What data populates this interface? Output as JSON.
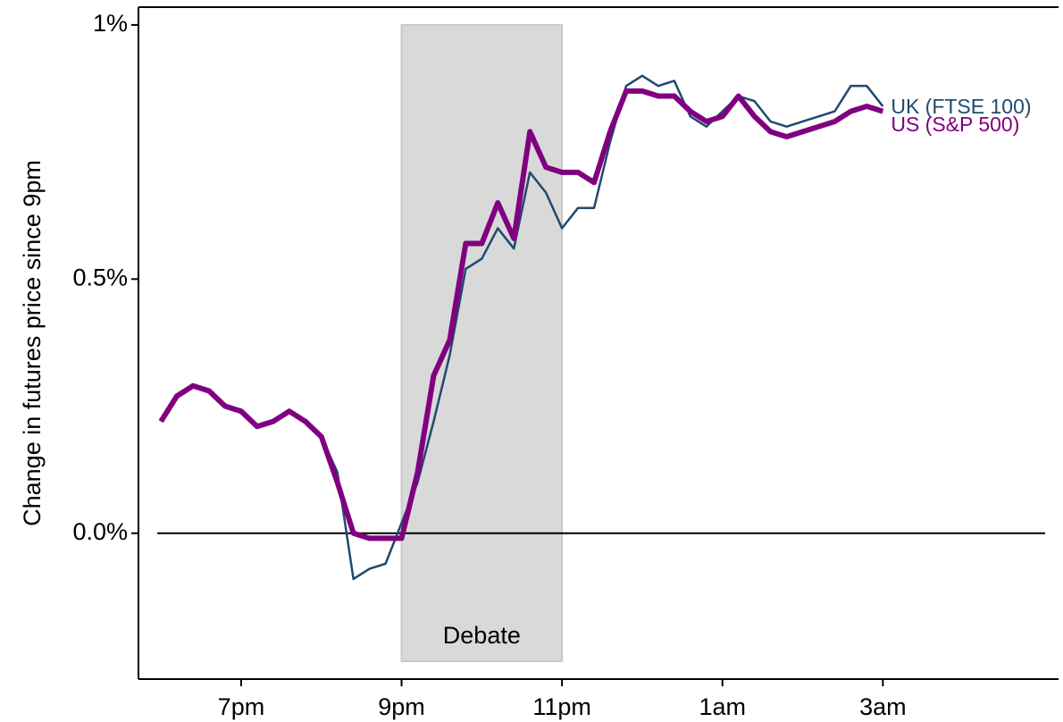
{
  "chart_data": {
    "type": "line",
    "ylabel": "Change in futures price since 9pm",
    "x": [
      18.0,
      18.2,
      18.4,
      18.6,
      18.8,
      19.0,
      19.2,
      19.4,
      19.6,
      19.8,
      20.0,
      20.2,
      20.4,
      20.6,
      20.8,
      21.0,
      21.2,
      21.4,
      21.6,
      21.8,
      22.0,
      22.2,
      22.4,
      22.6,
      22.8,
      23.0,
      23.2,
      23.4,
      23.6,
      23.8,
      24.0,
      24.2,
      24.4,
      24.6,
      24.8,
      25.0,
      25.2,
      25.4,
      25.6,
      25.8,
      26.0,
      26.2,
      26.4,
      26.6,
      26.8,
      27.0
    ],
    "series": [
      {
        "name": "UK (FTSE 100)",
        "color": "#1f4a6e",
        "values": [
          0.22,
          0.27,
          0.29,
          0.28,
          0.25,
          0.24,
          0.21,
          0.22,
          0.24,
          0.22,
          0.19,
          0.12,
          -0.09,
          -0.07,
          -0.06,
          0.02,
          0.1,
          0.22,
          0.35,
          0.52,
          0.54,
          0.6,
          0.56,
          0.71,
          0.67,
          0.6,
          0.64,
          0.64,
          0.77,
          0.88,
          0.9,
          0.88,
          0.89,
          0.82,
          0.8,
          0.83,
          0.86,
          0.85,
          0.81,
          0.8,
          0.81,
          0.82,
          0.83,
          0.88,
          0.88,
          0.84
        ]
      },
      {
        "name": "US (S&P 500)",
        "color": "#800080",
        "values": [
          0.22,
          0.27,
          0.29,
          0.28,
          0.25,
          0.24,
          0.21,
          0.22,
          0.24,
          0.22,
          0.19,
          0.1,
          0.0,
          -0.01,
          -0.01,
          -0.01,
          0.12,
          0.31,
          0.38,
          0.57,
          0.57,
          0.65,
          0.58,
          0.79,
          0.72,
          0.71,
          0.71,
          0.69,
          0.79,
          0.87,
          0.87,
          0.86,
          0.86,
          0.83,
          0.81,
          0.82,
          0.86,
          0.82,
          0.79,
          0.78,
          0.79,
          0.8,
          0.81,
          0.83,
          0.84,
          0.83
        ]
      }
    ],
    "shade": {
      "x": [
        21,
        23
      ],
      "label": "Debate"
    },
    "xlim": [
      17.72,
      29.19
    ],
    "ylim": [
      -0.287,
      1.035
    ],
    "xticks": [
      {
        "value": 19,
        "label": "7pm"
      },
      {
        "value": 21,
        "label": "9pm"
      },
      {
        "value": 23,
        "label": "11pm"
      },
      {
        "value": 25,
        "label": "1am"
      },
      {
        "value": 27,
        "label": "3am"
      }
    ],
    "yticks": [
      {
        "value": 0,
        "label": "0.0%"
      },
      {
        "value": 0.5,
        "label": "0.5%"
      },
      {
        "value": 1,
        "label": "1%"
      }
    ]
  }
}
